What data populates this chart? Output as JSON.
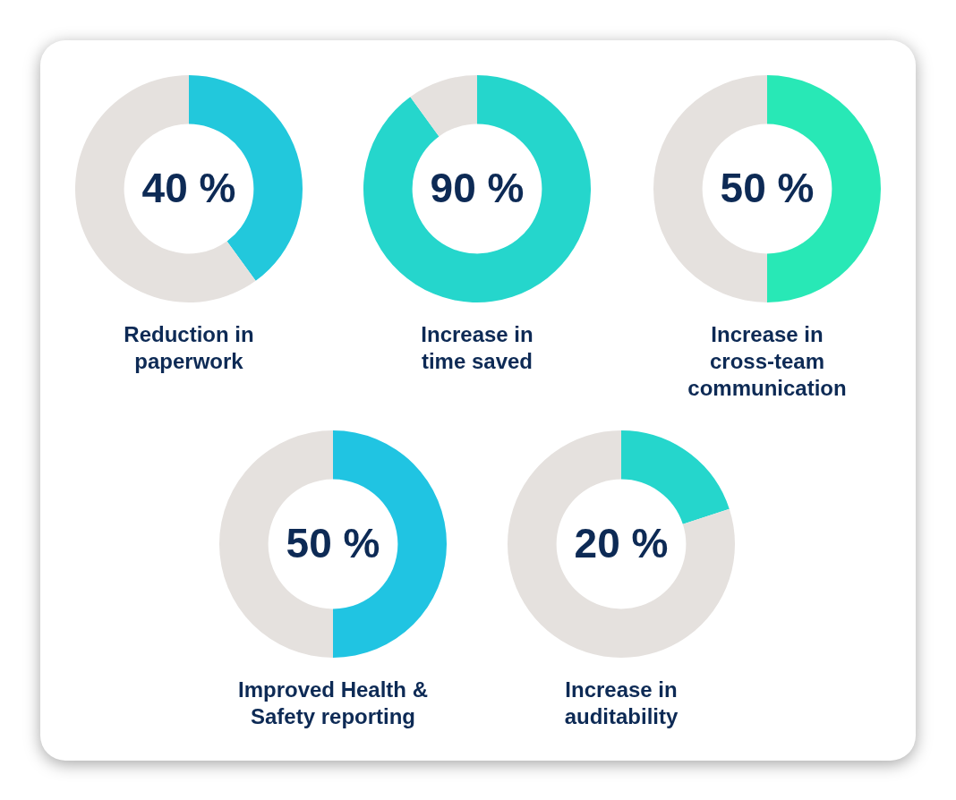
{
  "chart_data": [
    {
      "type": "donut",
      "title": "Reduction in paperwork",
      "categories": [
        null,
        null
      ],
      "values": [
        40,
        60
      ],
      "colors": [
        "#22c8dc",
        "#e5e1de"
      ],
      "value_labels": [
        "40 %",
        null
      ],
      "legend": false
    },
    {
      "type": "donut",
      "title": "Increase in time saved",
      "categories": [
        null,
        null
      ],
      "values": [
        90,
        10
      ],
      "colors": [
        "#25d6cc",
        "#e5e1de"
      ],
      "value_labels": [
        "90 %",
        null
      ],
      "legend": false
    },
    {
      "type": "donut",
      "title": "Increase in cross-team communication",
      "categories": [
        null,
        null
      ],
      "values": [
        50,
        50
      ],
      "colors": [
        "#28e8b6",
        "#e5e1de"
      ],
      "value_labels": [
        "50 %",
        null
      ],
      "legend": false
    },
    {
      "type": "donut",
      "title": "Improved Health & Safety reporting",
      "categories": [
        null,
        null
      ],
      "values": [
        50,
        50
      ],
      "colors": [
        "#20c4e2",
        "#e5e1de"
      ],
      "value_labels": [
        "50 %",
        null
      ],
      "legend": false
    },
    {
      "type": "donut",
      "title": "Increase in auditability",
      "categories": [
        null,
        null
      ],
      "values": [
        20,
        80
      ],
      "colors": [
        "#25d6cc",
        "#e5e1de"
      ],
      "value_labels": [
        "20 %",
        null
      ],
      "legend": false
    }
  ]
}
